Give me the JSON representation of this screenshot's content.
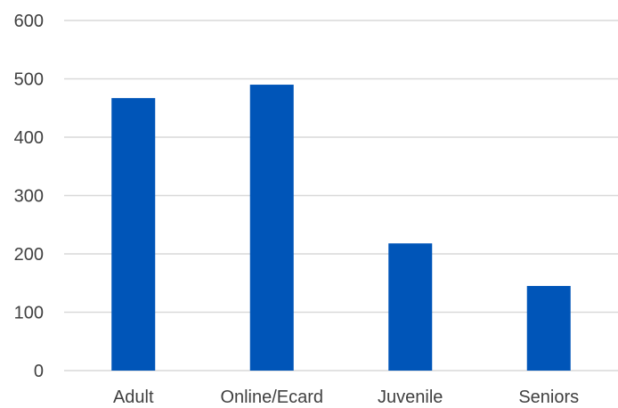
{
  "chart_data": {
    "type": "bar",
    "title": "",
    "xlabel": "",
    "ylabel": "",
    "categories": [
      "Adult",
      "Online/Ecard",
      "Juvenile",
      "Seniors"
    ],
    "values": [
      467,
      490,
      218,
      145
    ],
    "ylim": [
      0,
      600
    ],
    "yticks": [
      "0",
      "100",
      "200",
      "300",
      "400",
      "500",
      "600"
    ],
    "grid": true,
    "legend": "none",
    "bar_color": "#0055b8"
  }
}
